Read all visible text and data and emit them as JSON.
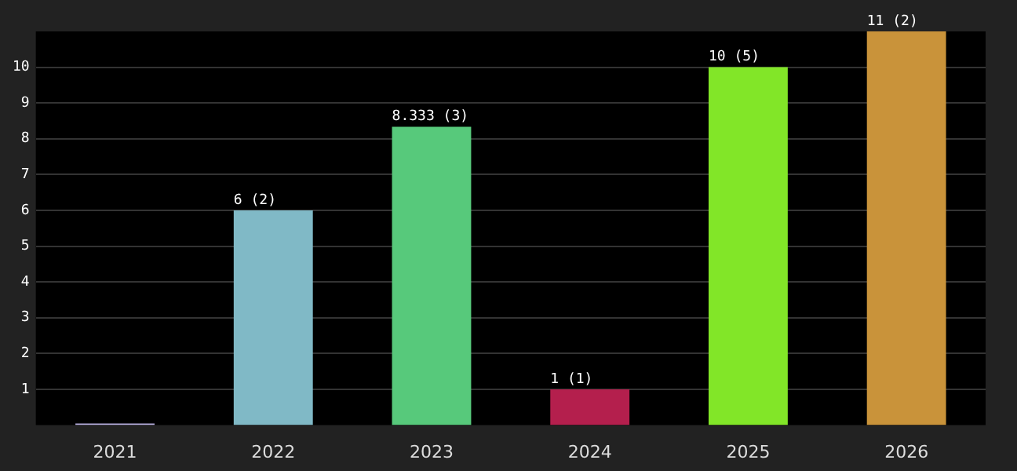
{
  "chart_data": {
    "type": "bar",
    "categories": [
      "2021",
      "2022",
      "2023",
      "2024",
      "2025",
      "2026"
    ],
    "values": [
      0,
      6,
      8.333,
      1,
      10,
      11
    ],
    "colors": [
      "#b8b0e0",
      "#80b9c6",
      "#57c97b",
      "#b41f4d",
      "#82e628",
      "#c9933a"
    ],
    "value_labels": [
      null,
      "6 (2)",
      "8.333 (3)",
      "1 (1)",
      "10 (5)",
      "11 (2)"
    ],
    "ylim": [
      0,
      11
    ],
    "yticks": [
      1,
      2,
      3,
      4,
      5,
      6,
      7,
      8,
      9,
      10
    ],
    "grid": "y",
    "legend": false
  }
}
